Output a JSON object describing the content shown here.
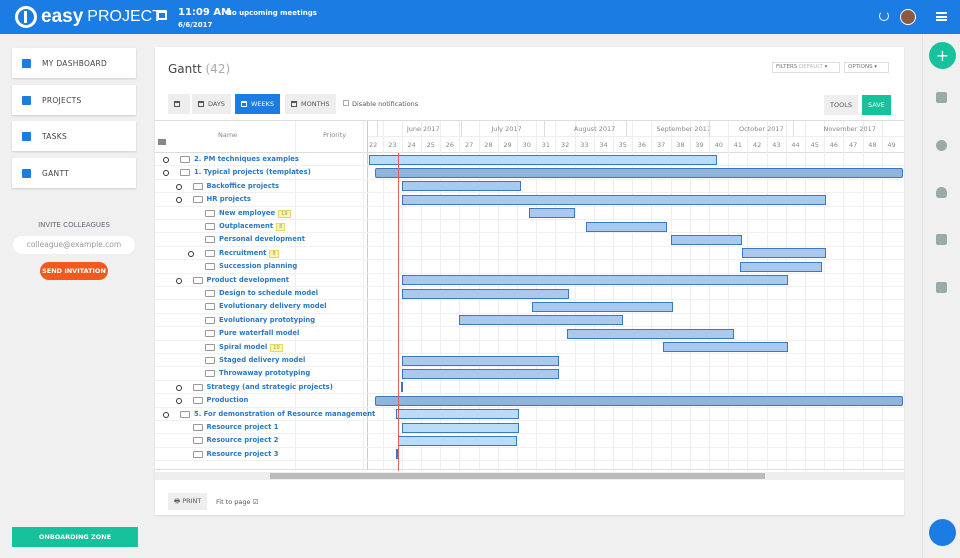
{
  "header": {
    "brand_bold": "easy",
    "brand_light": "PROJECT",
    "time": "11:09 AM",
    "date": "6/6/2017",
    "meetings": "No upcoming meetings"
  },
  "nav": [
    {
      "label": "MY DASHBOARD",
      "icon": "dashboard-icon"
    },
    {
      "label": "PROJECTS",
      "icon": "projects-icon"
    },
    {
      "label": "TASKS",
      "icon": "tasks-icon"
    },
    {
      "label": "GANTT",
      "icon": "gantt-icon"
    }
  ],
  "invite": {
    "title": "INVITE COLLEAGUES",
    "placeholder": "colleague@example.com",
    "button": "SEND INVITATION"
  },
  "onboarding": "ONBOARDING ZONE",
  "gantt": {
    "title": "Gantt",
    "count": "(42)",
    "filters": "FILTERS",
    "filters_value": "DEFAULT",
    "options": "OPTIONS",
    "buttons": {
      "days": "DAYS",
      "weeks": "WEEKS",
      "months": "MONTHS",
      "tools": "TOOLS",
      "save": "SAVE"
    },
    "disable_notifications": "Disable notifications",
    "col_name": "Name",
    "col_priority": "Priority",
    "months": [
      "June 2017",
      "July 2017",
      "August 2017",
      "September 2017",
      "October 2017",
      "November 2017"
    ],
    "weeks": [
      22,
      23,
      24,
      25,
      26,
      27,
      28,
      29,
      30,
      31,
      32,
      33,
      34,
      35,
      36,
      37,
      38,
      39,
      40,
      41,
      42,
      43,
      44,
      45,
      46,
      47,
      48,
      49
    ],
    "today_week": 23.3,
    "rows": [
      {
        "name": "2. PM techniques examples",
        "level": 0,
        "toggle": "plus",
        "start": 21.8,
        "end": 39.9,
        "style": "light"
      },
      {
        "name": "1. Typical projects (templates)",
        "level": 0,
        "toggle": "minus",
        "start": 22.1,
        "end": 49.6,
        "style": "dark"
      },
      {
        "name": "Backoffice projects",
        "level": 1,
        "toggle": "plus",
        "start": 23.5,
        "end": 29.7,
        "style": "mid"
      },
      {
        "name": "HR projects",
        "level": 1,
        "toggle": "minus",
        "start": 23.5,
        "end": 45.6,
        "style": "mid"
      },
      {
        "name": "New employee",
        "level": 2,
        "badge": "19",
        "start": 30.1,
        "end": 32.5,
        "style": "mid"
      },
      {
        "name": "Outplacement",
        "level": 2,
        "badge": "8",
        "start": 33.1,
        "end": 37.3,
        "style": "mid"
      },
      {
        "name": "Personal development",
        "level": 2,
        "start": 37.5,
        "end": 41.2,
        "style": "mid"
      },
      {
        "name": "Recruitment",
        "level": 2,
        "toggle": "plus",
        "badge": "8",
        "start": 41.2,
        "end": 45.6,
        "style": "mid"
      },
      {
        "name": "Succession planning",
        "level": 2,
        "start": 41.1,
        "end": 45.4,
        "style": "mid"
      },
      {
        "name": "Product development",
        "level": 1,
        "toggle": "minus",
        "start": 23.5,
        "end": 43.6,
        "style": "mid"
      },
      {
        "name": "Design to schedule model",
        "level": 2,
        "start": 23.5,
        "end": 32.2,
        "style": "mid"
      },
      {
        "name": "Evolutionary delivery model",
        "level": 2,
        "start": 30.3,
        "end": 37.6,
        "style": "mid"
      },
      {
        "name": "Evolutionary prototyping",
        "level": 2,
        "start": 26.5,
        "end": 35.0,
        "style": "mid"
      },
      {
        "name": "Pure waterfall model",
        "level": 2,
        "start": 32.1,
        "end": 40.8,
        "style": "mid"
      },
      {
        "name": "Spiral model",
        "level": 2,
        "badge": "10",
        "start": 37.1,
        "end": 43.6,
        "style": "mid"
      },
      {
        "name": "Staged delivery model",
        "level": 2,
        "start": 23.5,
        "end": 31.7,
        "style": "mid"
      },
      {
        "name": "Throwaway prototyping",
        "level": 2,
        "start": 23.5,
        "end": 31.7,
        "style": "mid"
      },
      {
        "name": "Strategy (and strategic projects)",
        "level": 1,
        "toggle": "plus",
        "start": 23.45,
        "end": 23.55,
        "style": "mid"
      },
      {
        "name": "Production",
        "level": 1,
        "toggle": "plus",
        "start": 22.1,
        "end": 49.6,
        "style": "dark"
      },
      {
        "name": "5. For demonstration of Resource management",
        "level": 0,
        "toggle": "minus",
        "start": 23.2,
        "end": 29.6,
        "style": "light"
      },
      {
        "name": "Resource project 1",
        "level": 1,
        "start": 23.5,
        "end": 29.6,
        "style": "light"
      },
      {
        "name": "Resource project 2",
        "level": 1,
        "start": 23.3,
        "end": 29.5,
        "style": "light"
      },
      {
        "name": "Resource project 3",
        "level": 1,
        "start": 23.2,
        "end": 23.3,
        "style": "mid"
      }
    ],
    "print": "PRINT",
    "fit_to_page": "Fit to page"
  },
  "colors": {
    "brand": "#1b7ce3",
    "accent": "#16c29b",
    "invite": "#f05a1e",
    "bar_dark": "#8fb4dd",
    "bar_mid": "#a9c9ee",
    "bar_light": "#b9dcfa",
    "today": "#e06060"
  }
}
